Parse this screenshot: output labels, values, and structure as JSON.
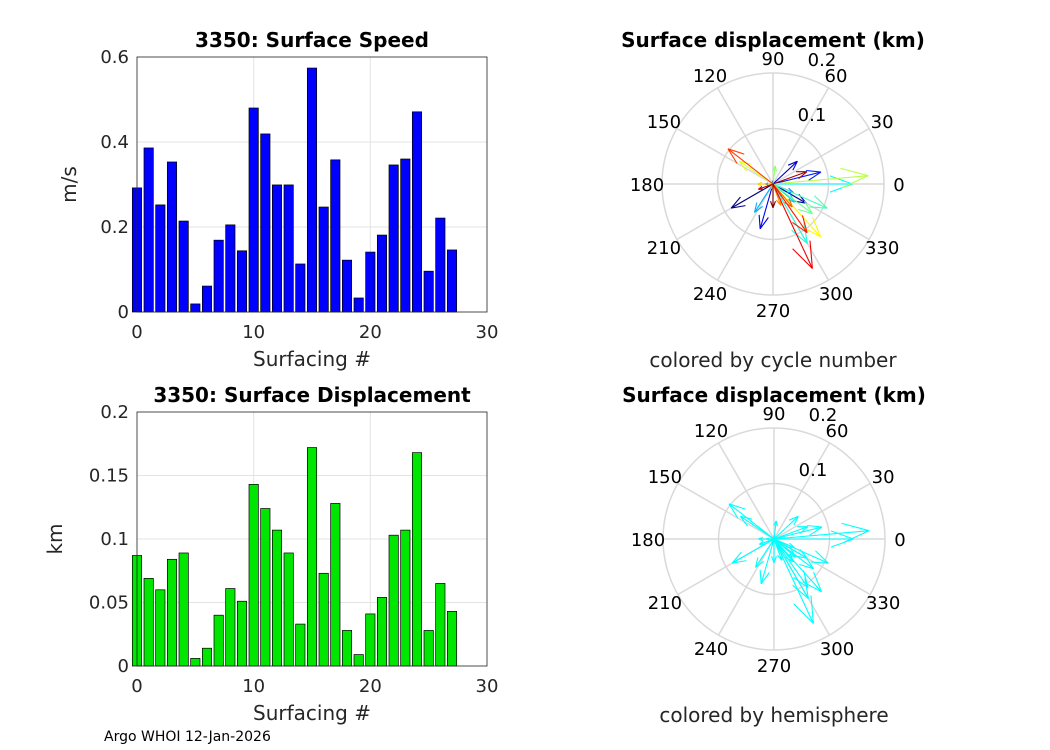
{
  "footer": "Argo WHOI 12-Jan-2026",
  "chart_data": [
    {
      "type": "bar",
      "title": "3350: Surface Speed",
      "xlabel": "Surfacing #",
      "ylabel": "m/s",
      "xlim": [
        0,
        30
      ],
      "ylim": [
        0,
        0.6
      ],
      "xticks": [
        "0",
        "10",
        "20",
        "30"
      ],
      "yticks": [
        "0",
        "0.2",
        "0.4",
        "0.6"
      ],
      "grid": true,
      "color": "#0000ff",
      "x": [
        0,
        1,
        2,
        3,
        4,
        5,
        6,
        7,
        8,
        9,
        10,
        11,
        12,
        13,
        14,
        15,
        16,
        17,
        18,
        19,
        20,
        21,
        22,
        23,
        24,
        25,
        26,
        27
      ],
      "values": [
        0.292,
        0.386,
        0.252,
        0.353,
        0.214,
        0.019,
        0.061,
        0.169,
        0.205,
        0.144,
        0.48,
        0.419,
        0.299,
        0.299,
        0.113,
        0.574,
        0.247,
        0.358,
        0.122,
        0.033,
        0.141,
        0.181,
        0.346,
        0.36,
        0.471,
        0.096,
        0.221,
        0.146
      ]
    },
    {
      "type": "bar",
      "title": "3350: Surface Displacement",
      "xlabel": "Surfacing #",
      "ylabel": "km",
      "xlim": [
        0,
        30
      ],
      "ylim": [
        0,
        0.2
      ],
      "xticks": [
        "0",
        "10",
        "20",
        "30"
      ],
      "yticks": [
        "0",
        "0.05",
        "0.1",
        "0.15",
        "0.2"
      ],
      "grid": true,
      "color": "#00e600",
      "x": [
        0,
        1,
        2,
        3,
        4,
        5,
        6,
        7,
        8,
        9,
        10,
        11,
        12,
        13,
        14,
        15,
        16,
        17,
        18,
        19,
        20,
        21,
        22,
        23,
        24,
        25,
        26,
        27
      ],
      "values": [
        0.087,
        0.069,
        0.06,
        0.084,
        0.089,
        0.006,
        0.014,
        0.04,
        0.061,
        0.051,
        0.143,
        0.124,
        0.107,
        0.089,
        0.033,
        0.172,
        0.073,
        0.128,
        0.028,
        0.009,
        0.041,
        0.054,
        0.103,
        0.107,
        0.168,
        0.028,
        0.065,
        0.043
      ]
    },
    {
      "type": "polar-quiver",
      "title": "Surface displacement (km)",
      "caption": "colored by cycle number",
      "rlim": [
        0,
        0.2
      ],
      "rticks": [
        "0.1",
        "0.2"
      ],
      "angle_ticks": [
        "0",
        "30",
        "60",
        "90",
        "120",
        "150",
        "180",
        "210",
        "240",
        "270",
        "300",
        "330"
      ],
      "coloring": "jet-by-cycle",
      "angles_deg": [
        210,
        330,
        43,
        254,
        14,
        90,
        180,
        337,
        237,
        320,
        0,
        300,
        336,
        323,
        83,
        5,
        146,
        312,
        180,
        250,
        290,
        310,
        142,
        305,
        295,
        200,
        20,
        270
      ],
      "magnitudes": [
        0.087,
        0.069,
        0.06,
        0.084,
        0.089,
        0.006,
        0.014,
        0.04,
        0.061,
        0.051,
        0.143,
        0.124,
        0.107,
        0.089,
        0.033,
        0.172,
        0.073,
        0.128,
        0.028,
        0.009,
        0.041,
        0.054,
        0.103,
        0.107,
        0.168,
        0.028,
        0.065,
        0.043
      ]
    },
    {
      "type": "polar-quiver",
      "title": "Surface displacement (km)",
      "caption": "colored by hemisphere",
      "rlim": [
        0,
        0.2
      ],
      "rticks": [
        "0.1",
        "0.2"
      ],
      "angle_ticks": [
        "0",
        "30",
        "60",
        "90",
        "120",
        "150",
        "180",
        "210",
        "240",
        "270",
        "300",
        "330"
      ],
      "color": "#00ffff",
      "angles_deg": [
        210,
        330,
        43,
        254,
        14,
        90,
        180,
        337,
        237,
        320,
        0,
        300,
        336,
        323,
        83,
        5,
        146,
        312,
        180,
        250,
        290,
        310,
        142,
        305,
        295,
        200,
        20,
        270
      ],
      "magnitudes": [
        0.087,
        0.069,
        0.06,
        0.084,
        0.089,
        0.006,
        0.014,
        0.04,
        0.061,
        0.051,
        0.143,
        0.124,
        0.107,
        0.089,
        0.033,
        0.172,
        0.073,
        0.128,
        0.028,
        0.009,
        0.041,
        0.054,
        0.103,
        0.107,
        0.168,
        0.028,
        0.065,
        0.043
      ]
    }
  ]
}
